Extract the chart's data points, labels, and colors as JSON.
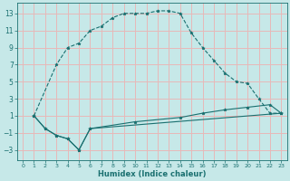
{
  "xlabel": "Humidex (Indice chaleur)",
  "xlim": [
    -0.5,
    23.5
  ],
  "ylim": [
    -4.2,
    14.2
  ],
  "yticks": [
    -3,
    -1,
    1,
    3,
    5,
    7,
    9,
    11,
    13
  ],
  "xticks": [
    0,
    1,
    2,
    3,
    4,
    5,
    6,
    7,
    8,
    9,
    10,
    11,
    12,
    13,
    14,
    15,
    16,
    17,
    18,
    19,
    20,
    21,
    22,
    23
  ],
  "bg_color": "#c6e8e8",
  "grid_color": "#e8b8b8",
  "line_color": "#1a7070",
  "line1_x": [
    1,
    3,
    4,
    5,
    6,
    7,
    8,
    9,
    10,
    11,
    12,
    13,
    14,
    15,
    16,
    17,
    18,
    19,
    20,
    21,
    22,
    23
  ],
  "line1_y": [
    1,
    7,
    9,
    9.5,
    11,
    11.5,
    12.5,
    13,
    13,
    13,
    13.3,
    13.3,
    13,
    10.7,
    9,
    7.5,
    6,
    5,
    4.8,
    3,
    1.3,
    1.3
  ],
  "line2_x": [
    1,
    2,
    3,
    4,
    5,
    6,
    23
  ],
  "line2_y": [
    1,
    -0.5,
    -1.3,
    -1.7,
    -3,
    -0.5,
    1.3
  ],
  "line3_x": [
    1,
    2,
    3,
    4,
    5,
    6,
    10,
    14,
    16,
    18,
    20,
    22,
    23
  ],
  "line3_y": [
    1,
    -0.5,
    -1.3,
    -1.7,
    -3,
    -0.5,
    0.3,
    0.8,
    1.3,
    1.7,
    2.0,
    2.3,
    1.3
  ],
  "line1_style": "--",
  "line2_style": "-",
  "line3_style": "-"
}
